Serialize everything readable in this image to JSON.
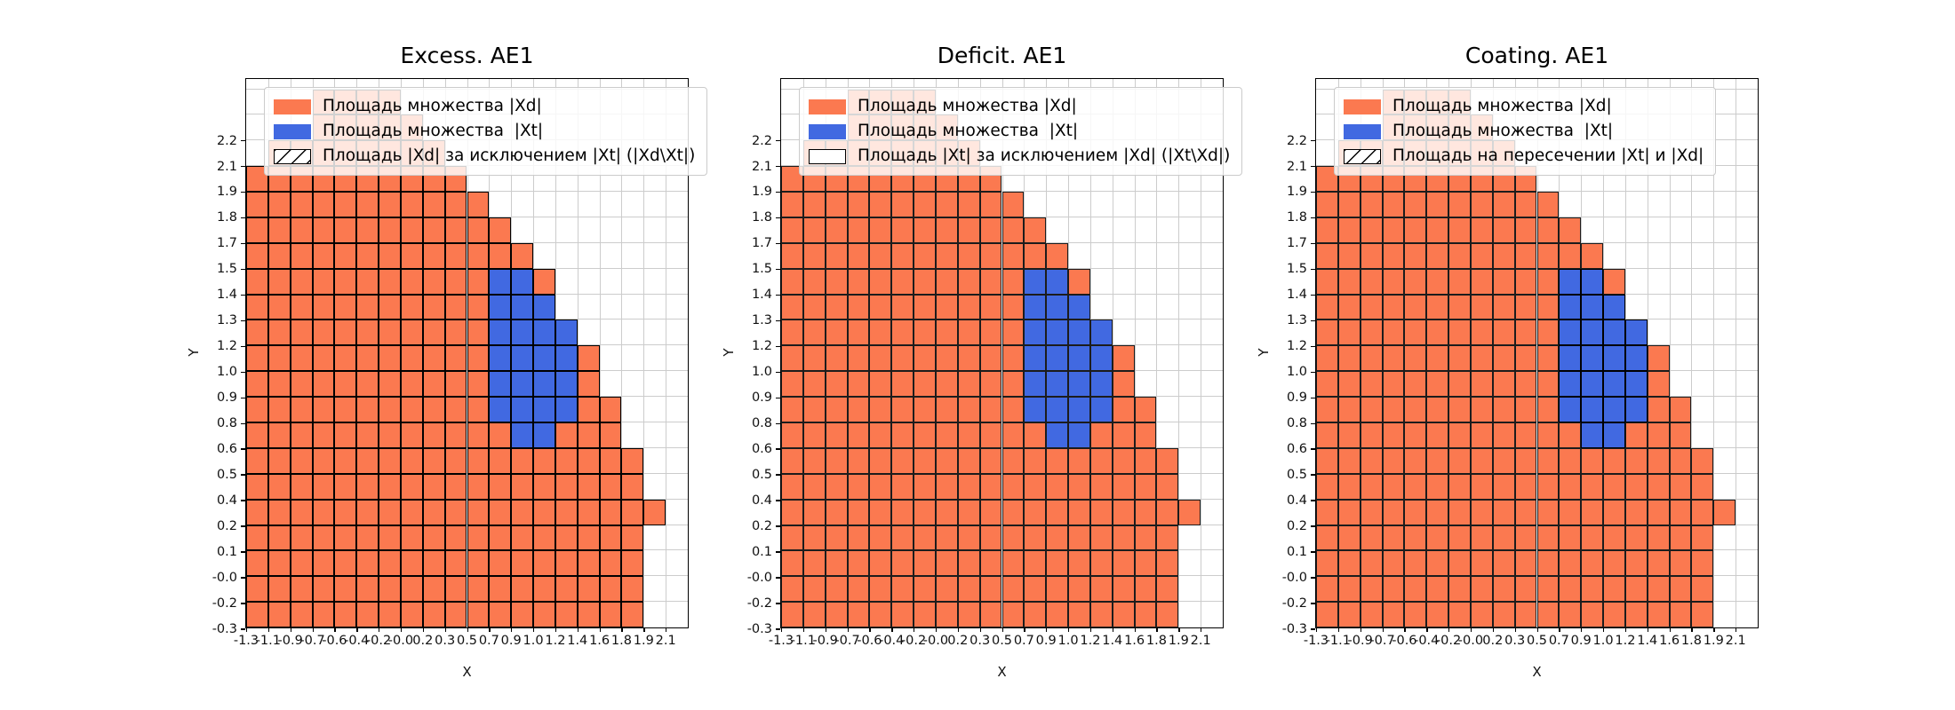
{
  "figure": {
    "xlabel": "X",
    "ylabel": "Y"
  },
  "chart_data": {
    "type": "heatmap",
    "description": "Three identical cell-grid set plots comparing set Xd (orange) and set Xt (blue); hatching marks Xd\\Xt (plot 1), Xt\\Xd (plot 2, empty) and the intersection (plot 3).",
    "x_tick_labels": [
      "-1.3",
      "-1.1",
      "-0.9",
      "-0.7",
      "-0.6",
      "-0.4",
      "-0.2",
      "-0.0",
      "0.2",
      "0.3",
      "0.5",
      "0.7",
      "0.9",
      "1.0",
      "1.2",
      "1.4",
      "1.6",
      "1.8",
      "1.9",
      "2.1"
    ],
    "y_tick_labels": [
      "-0.3",
      "-0.2",
      "-0.0",
      "0.1",
      "0.2",
      "0.4",
      "0.5",
      "0.6",
      "0.8",
      "0.9",
      "1.0",
      "1.2",
      "1.3",
      "1.4",
      "1.5",
      "1.7",
      "1.8",
      "1.9",
      "2.1",
      "2.2"
    ],
    "colors": {
      "xd": "#FB7950",
      "xt": "#4169E1",
      "grid": "#cccccc"
    },
    "xd_cell_row_ranges": [
      [
        0,
        0,
        17
      ],
      [
        1,
        0,
        17
      ],
      [
        2,
        0,
        17
      ],
      [
        3,
        0,
        17
      ],
      [
        4,
        0,
        18
      ],
      [
        5,
        0,
        17
      ],
      [
        6,
        0,
        17
      ],
      [
        7,
        0,
        11
      ],
      [
        7,
        14,
        16
      ],
      [
        8,
        0,
        10
      ],
      [
        8,
        15,
        16
      ],
      [
        9,
        0,
        10
      ],
      [
        9,
        15,
        15
      ],
      [
        10,
        0,
        10
      ],
      [
        10,
        15,
        15
      ],
      [
        11,
        0,
        10
      ],
      [
        12,
        0,
        10
      ],
      [
        13,
        0,
        10
      ],
      [
        13,
        13,
        13
      ],
      [
        14,
        0,
        12
      ],
      [
        15,
        0,
        11
      ],
      [
        16,
        0,
        10
      ],
      [
        17,
        0,
        9
      ],
      [
        18,
        1,
        8
      ],
      [
        19,
        3,
        7
      ],
      [
        20,
        3,
        6
      ]
    ],
    "xt_cell_row_ranges": [
      [
        7,
        12,
        13
      ],
      [
        8,
        11,
        14
      ],
      [
        9,
        11,
        14
      ],
      [
        10,
        11,
        14
      ],
      [
        11,
        11,
        14
      ],
      [
        12,
        11,
        13
      ],
      [
        13,
        11,
        12
      ]
    ],
    "plots": [
      {
        "title": "Excess. AE1",
        "hatch": "xd",
        "legend": [
          {
            "label": "Площадь множества |Xd|",
            "swatch": "xd"
          },
          {
            "label": "Площадь множества  |Xt|",
            "swatch": "xt"
          },
          {
            "label": "Площадь |Xd| за исключением |Xt| (|Xd\\Xt|)",
            "swatch": "hatched"
          }
        ]
      },
      {
        "title": "Deficit. AE1",
        "hatch": "none",
        "legend": [
          {
            "label": "Площадь множества |Xd|",
            "swatch": "xd"
          },
          {
            "label": "Площадь множества  |Xt|",
            "swatch": "xt"
          },
          {
            "label": "Площадь |Xt| за исключением |Xd| (|Xt\\Xd|)",
            "swatch": "plain"
          }
        ]
      },
      {
        "title": "Coating. AE1",
        "hatch": "xt",
        "legend": [
          {
            "label": "Площадь множества |Xd|",
            "swatch": "xd"
          },
          {
            "label": "Площадь множества  |Xt|",
            "swatch": "xt"
          },
          {
            "label": "Площадь на пересечении |Xt| и |Xd|",
            "swatch": "hatched"
          }
        ]
      }
    ]
  }
}
